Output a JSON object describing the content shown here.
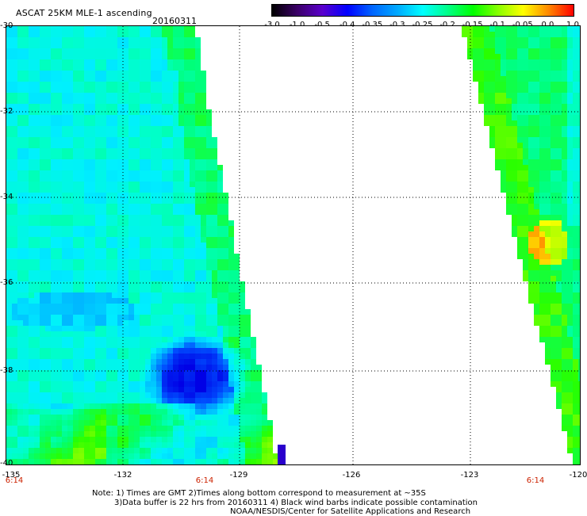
{
  "header": {
    "title": "ASCAT 25KM MLE-1 ascending",
    "date": "20160311"
  },
  "colorbar": {
    "labels": [
      "-3.0",
      "-1.0",
      "-0.5",
      "-0.4",
      "-0.35",
      "-0.3",
      "-0.25",
      "-0.2",
      "-0.15",
      "-0.1",
      "-0.05",
      "0.0",
      "1.0"
    ],
    "colors": [
      "#000000",
      "#3a0066",
      "#5a00cc",
      "#0000ff",
      "#0066ff",
      "#00aaff",
      "#00ffff",
      "#00ff88",
      "#00ff00",
      "#88ff00",
      "#ffff00",
      "#ff8800",
      "#ff0000"
    ]
  },
  "map": {
    "lat_labels": [
      "-30",
      "-32",
      "-34",
      "-36",
      "-38",
      "-40"
    ],
    "lon_labels": [
      "-135",
      "-132",
      "-129",
      "-126",
      "-123",
      "-120"
    ],
    "time_labels": [
      "6:14",
      "6:14",
      "6:14"
    ]
  },
  "notes": {
    "line1": "Note: 1) Times are GMT 2)Times along bottom correspond to measurement at ~35S",
    "line2": "3)Data buffer is 22 hrs from 20160311 4) Black wind barbs indicate possible contamination",
    "line3": "NOAA/NESDIS/Center for Satellite Applications and Research"
  }
}
